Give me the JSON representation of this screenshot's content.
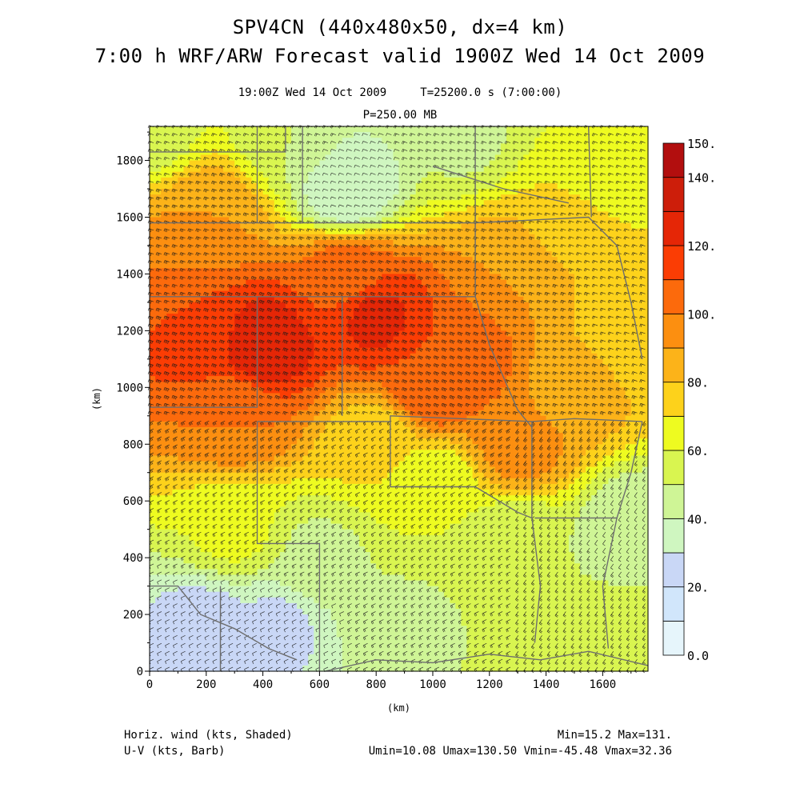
{
  "header": {
    "title_line1": "SPV4CN (440x480x50, dx=4 km)",
    "title_line2": "7:00 h WRF/ARW Forecast valid 1900Z Wed 14 Oct 2009",
    "subtitle": "19:00Z Wed 14 Oct 2009     T=25200.0 s (7:00:00)",
    "level": "P=250.00 MB"
  },
  "chart_data": {
    "type": "heatmap",
    "xlabel": "(km)",
    "ylabel": "(km)",
    "xlim": [
      0,
      1760
    ],
    "ylim": [
      0,
      1920
    ],
    "x_ticks": [
      0,
      200,
      400,
      600,
      800,
      1000,
      1200,
      1400,
      1600
    ],
    "y_ticks": [
      0,
      200,
      400,
      600,
      800,
      1000,
      1200,
      1400,
      1600,
      1800
    ],
    "colorbar": {
      "levels": [
        0,
        10,
        20,
        30,
        40,
        50,
        60,
        70,
        80,
        90,
        100,
        110,
        120,
        130,
        140,
        150
      ],
      "labels": [
        "0.0",
        "20.",
        "40.",
        "60.",
        "80.",
        "100.",
        "120.",
        "140.",
        "150."
      ],
      "label_values": [
        0,
        20,
        40,
        60,
        80,
        100,
        120,
        140,
        150
      ],
      "colors": [
        "#e6f5fb",
        "#d1e6fb",
        "#c9d7f6",
        "#cff6c0",
        "#cff596",
        "#d9f550",
        "#eefb20",
        "#fdd21b",
        "#fcb319",
        "#fc8f10",
        "#fc6a0c",
        "#fb3d04",
        "#e52606",
        "#cd1e0a",
        "#b20e0e"
      ]
    },
    "wind_speed_kts_samples": [
      {
        "x": 0,
        "y": 1900,
        "v": 55
      },
      {
        "x": 500,
        "y": 1900,
        "v": 50
      },
      {
        "x": 1100,
        "y": 1900,
        "v": 48
      },
      {
        "x": 1700,
        "y": 1900,
        "v": 60
      },
      {
        "x": 700,
        "y": 1700,
        "v": 30
      },
      {
        "x": 200,
        "y": 1600,
        "v": 90
      },
      {
        "x": 1500,
        "y": 1600,
        "v": 70
      },
      {
        "x": 100,
        "y": 1400,
        "v": 100
      },
      {
        "x": 700,
        "y": 1400,
        "v": 105
      },
      {
        "x": 1300,
        "y": 1400,
        "v": 90
      },
      {
        "x": 200,
        "y": 1200,
        "v": 118
      },
      {
        "x": 400,
        "y": 1150,
        "v": 128
      },
      {
        "x": 800,
        "y": 1250,
        "v": 122
      },
      {
        "x": 1100,
        "y": 1100,
        "v": 110
      },
      {
        "x": 1500,
        "y": 1000,
        "v": 85
      },
      {
        "x": 1700,
        "y": 1200,
        "v": 70
      },
      {
        "x": 300,
        "y": 900,
        "v": 100
      },
      {
        "x": 1300,
        "y": 800,
        "v": 95
      },
      {
        "x": 800,
        "y": 800,
        "v": 72
      },
      {
        "x": 1000,
        "y": 650,
        "v": 60
      },
      {
        "x": 300,
        "y": 500,
        "v": 62
      },
      {
        "x": 600,
        "y": 400,
        "v": 48
      },
      {
        "x": 1300,
        "y": 450,
        "v": 50
      },
      {
        "x": 1700,
        "y": 500,
        "v": 42
      },
      {
        "x": 200,
        "y": 150,
        "v": 25
      },
      {
        "x": 450,
        "y": 150,
        "v": 28
      },
      {
        "x": 900,
        "y": 150,
        "v": 48
      },
      {
        "x": 1400,
        "y": 150,
        "v": 52
      },
      {
        "x": 1700,
        "y": 100,
        "v": 58
      },
      {
        "x": 1000,
        "y": 1000,
        "v": 108
      }
    ]
  },
  "footer": {
    "left_line1": "Horiz. wind (kts, Shaded)",
    "left_line2": "U-V (kts, Barb)",
    "right_line1": "Min=15.2 Max=131.",
    "right_line2": "Umin=10.08 Umax=130.50 Vmin=-45.48 Vmax=32.36"
  }
}
